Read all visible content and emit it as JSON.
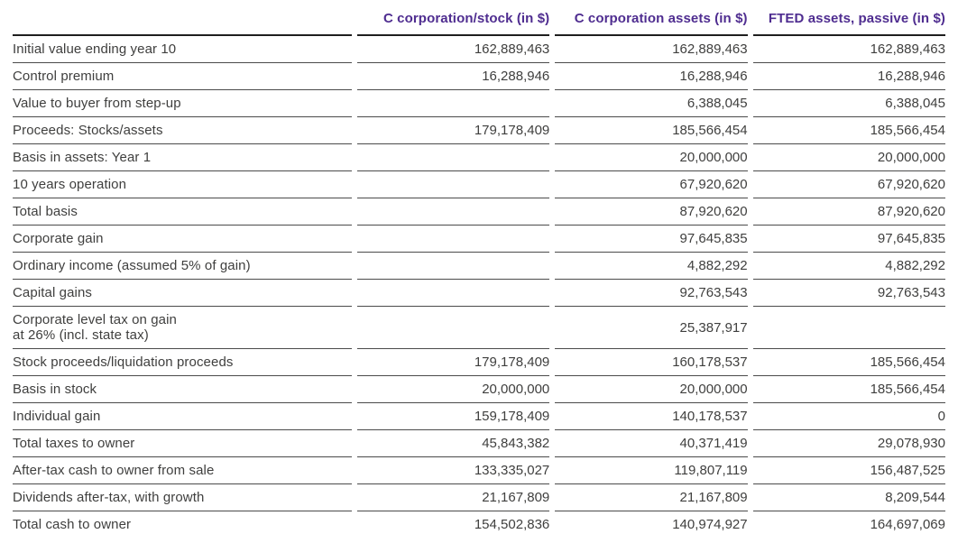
{
  "table": {
    "columns": [
      "",
      "C corporation/stock (in $)",
      "C corporation assets (in $)",
      "FTED assets, passive (in $)"
    ],
    "rows": [
      {
        "label": "Initial value ending year 10",
        "values": [
          "162,889,463",
          "162,889,463",
          "162,889,463"
        ]
      },
      {
        "label": "Control premium",
        "values": [
          "16,288,946",
          "16,288,946",
          "16,288,946"
        ]
      },
      {
        "label": "Value to buyer from step-up",
        "values": [
          "",
          "6,388,045",
          "6,388,045"
        ]
      },
      {
        "label": "Proceeds: Stocks/assets",
        "values": [
          "179,178,409",
          "185,566,454",
          "185,566,454"
        ]
      },
      {
        "label": "Basis in assets: Year 1",
        "values": [
          "",
          "20,000,000",
          "20,000,000"
        ]
      },
      {
        "label": "10 years operation",
        "values": [
          "",
          "67,920,620",
          "67,920,620"
        ]
      },
      {
        "label": "Total basis",
        "values": [
          "",
          "87,920,620",
          "87,920,620"
        ]
      },
      {
        "label": "Corporate gain",
        "values": [
          "",
          "97,645,835",
          "97,645,835"
        ]
      },
      {
        "label": "Ordinary income (assumed 5% of gain)",
        "values": [
          "",
          "4,882,292",
          "4,882,292"
        ]
      },
      {
        "label": "Capital gains",
        "values": [
          "",
          "92,763,543",
          "92,763,543"
        ]
      },
      {
        "label": "Corporate level tax on gain\nat 26% (incl. state tax)",
        "values": [
          "",
          "25,387,917",
          ""
        ]
      },
      {
        "label": "Stock proceeds/liquidation proceeds",
        "values": [
          "179,178,409",
          "160,178,537",
          "185,566,454"
        ]
      },
      {
        "label": "Basis in stock",
        "values": [
          "20,000,000",
          "20,000,000",
          "185,566,454"
        ]
      },
      {
        "label": "Individual gain",
        "values": [
          "159,178,409",
          "140,178,537",
          "0"
        ]
      },
      {
        "label": "Total taxes to owner",
        "values": [
          "45,843,382",
          "40,371,419",
          "29,078,930"
        ]
      },
      {
        "label": "After-tax cash to owner from sale",
        "values": [
          "133,335,027",
          "119,807,119",
          "156,487,525"
        ]
      },
      {
        "label": "Dividends after-tax, with growth",
        "values": [
          "21,167,809",
          "21,167,809",
          "8,209,544"
        ]
      },
      {
        "label": "Total cash to owner",
        "values": [
          "154,502,836",
          "140,974,927",
          "164,697,069"
        ]
      }
    ],
    "colors": {
      "header_text": "#4f2d90",
      "body_text": "#3f3f3e",
      "rule_heavy": "#1f1f1f",
      "rule_light": "#4b4b4b",
      "background": "#ffffff"
    }
  }
}
